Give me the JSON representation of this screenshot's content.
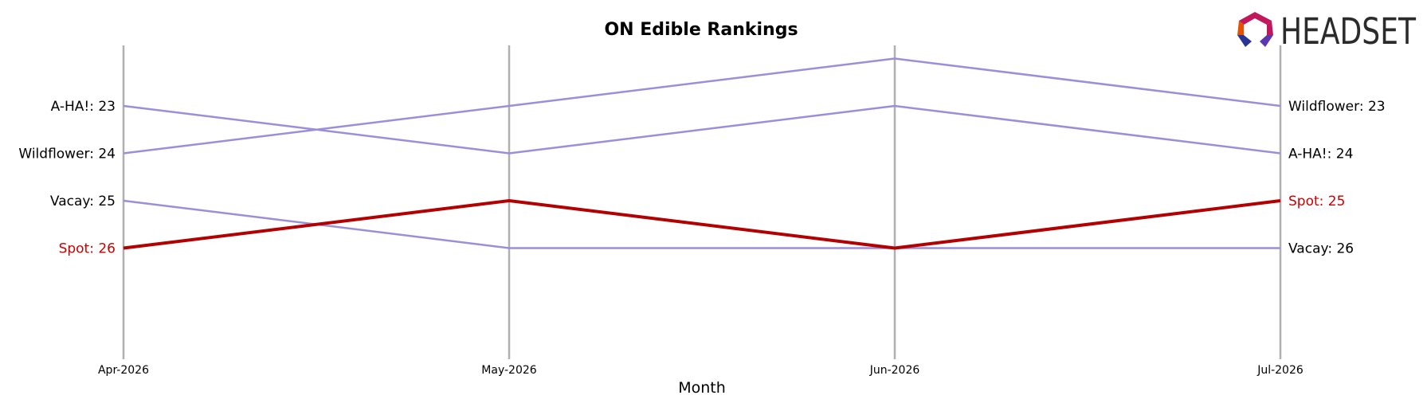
{
  "chart_data": {
    "type": "line",
    "title": "ON Edible Rankings",
    "xlabel": "Month",
    "ylabel": "",
    "categories": [
      "Apr-2026",
      "May-2026",
      "Jun-2026",
      "Jul-2026"
    ],
    "y_inverted": true,
    "ylim": [
      22,
      29
    ],
    "grid": false,
    "series": [
      {
        "name": "A-HA!",
        "values": [
          23,
          24,
          23,
          24
        ],
        "color": "#9b8fda",
        "highlight": false,
        "start_label": "A-HA!: 23",
        "end_label": "A-HA!: 24"
      },
      {
        "name": "Wildflower",
        "values": [
          24,
          23,
          22,
          23
        ],
        "color": "#9b8fda",
        "highlight": false,
        "start_label": "Wildflower: 24",
        "end_label": "Wildflower: 23"
      },
      {
        "name": "Vacay",
        "values": [
          25,
          26,
          26,
          26
        ],
        "color": "#9b8fda",
        "highlight": false,
        "start_label": "Vacay: 25",
        "end_label": "Vacay: 26"
      },
      {
        "name": "Spot",
        "values": [
          26,
          25,
          26,
          25
        ],
        "color": "#b30000",
        "highlight": true,
        "start_label": "Spot: 26",
        "end_label": "Spot: 25"
      }
    ],
    "label_color_highlight": "#cc0000",
    "label_color_default": "#000000",
    "axis_line_color": "#b0b0b0"
  },
  "logo": {
    "text": "HEADSET",
    "colors": [
      "#c2185b",
      "#e65100",
      "#283593",
      "#5e35b1"
    ]
  }
}
